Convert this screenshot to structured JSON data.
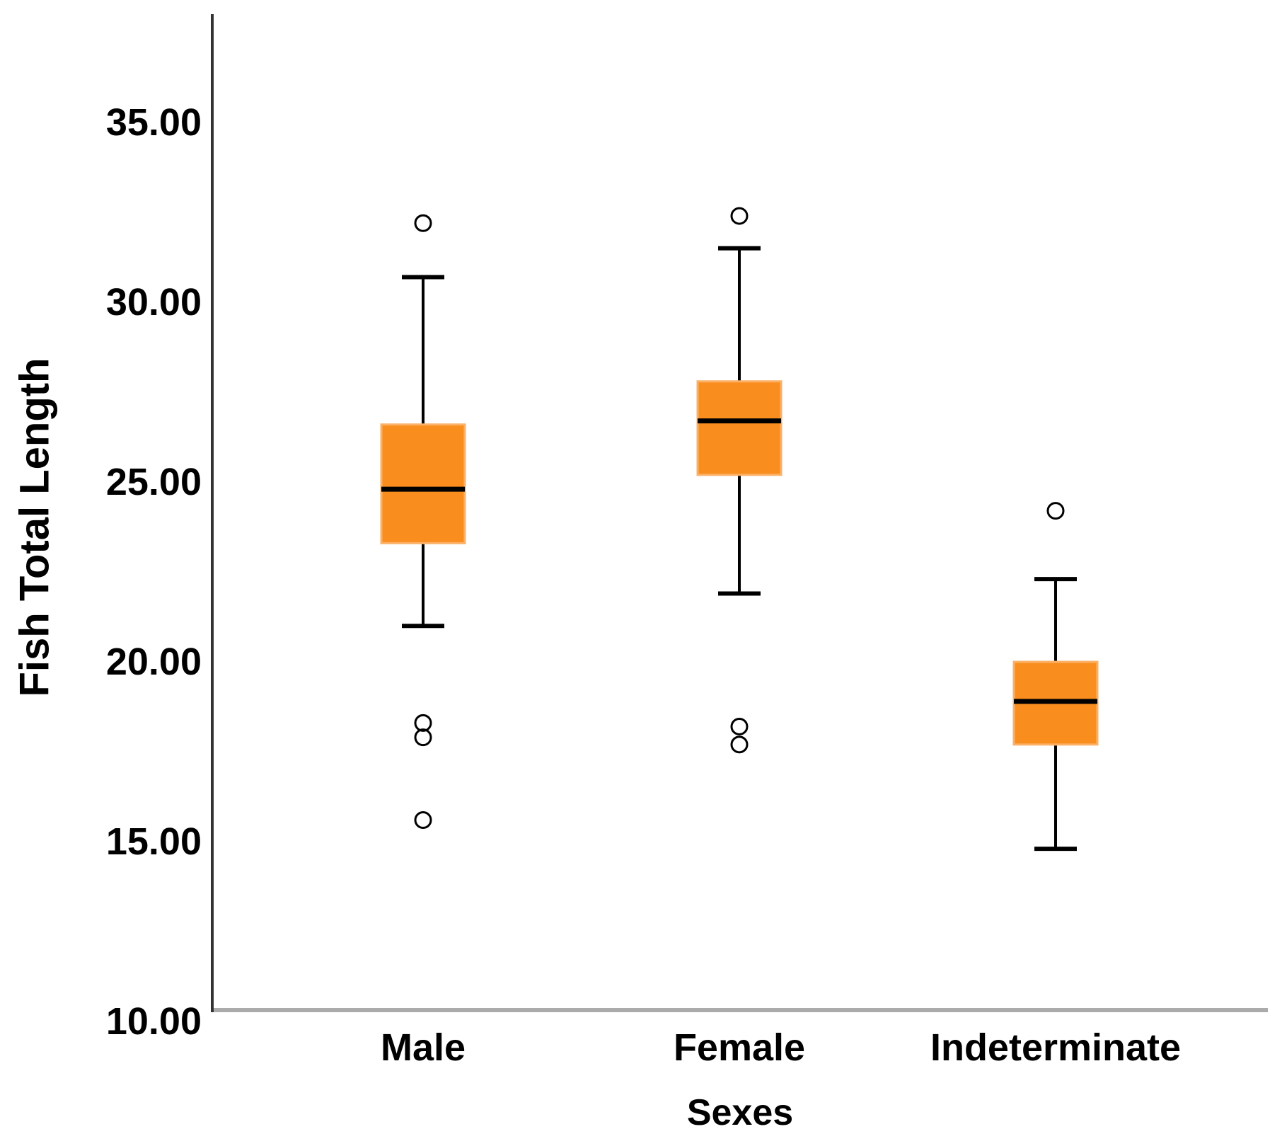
{
  "chart_data": {
    "type": "boxplot",
    "title": "",
    "xlabel": "Sexes",
    "ylabel": "Fish Total Length",
    "categories": [
      "Male",
      "Female",
      "Indeterminate"
    ],
    "y_axis": {
      "min": 10,
      "max": 35,
      "tick_step": 5,
      "tick_values": [
        35,
        30,
        25,
        20,
        15,
        10
      ],
      "tick_labels": [
        "35.00",
        "30.00",
        "25.00",
        "20.00",
        "15.00",
        "10.00"
      ]
    },
    "grid": false,
    "legend": "none",
    "series": [
      {
        "category": "Male",
        "whisker_low": 21.0,
        "q1": 23.3,
        "median": 24.8,
        "q3": 26.6,
        "whisker_high": 30.7,
        "outliers": [
          32.2,
          18.3,
          17.9,
          15.6
        ]
      },
      {
        "category": "Female",
        "whisker_low": 21.9,
        "q1": 25.2,
        "median": 26.7,
        "q3": 27.8,
        "whisker_high": 31.5,
        "outliers": [
          32.4,
          18.2,
          17.7
        ]
      },
      {
        "category": "Indeterminate",
        "whisker_low": 14.8,
        "q1": 17.7,
        "median": 18.9,
        "q3": 20.0,
        "whisker_high": 22.3,
        "outliers": [
          24.2
        ]
      }
    ],
    "colors": {
      "box_fill": "#F98E1E",
      "box_border": "#FBB168",
      "median": "#000000",
      "whisker": "#000000",
      "outlier_stroke": "#000000",
      "y_axis_line": "#333333",
      "x_axis_line": "#ABABAB",
      "text": "#000000",
      "background": "#FFFFFF"
    }
  }
}
